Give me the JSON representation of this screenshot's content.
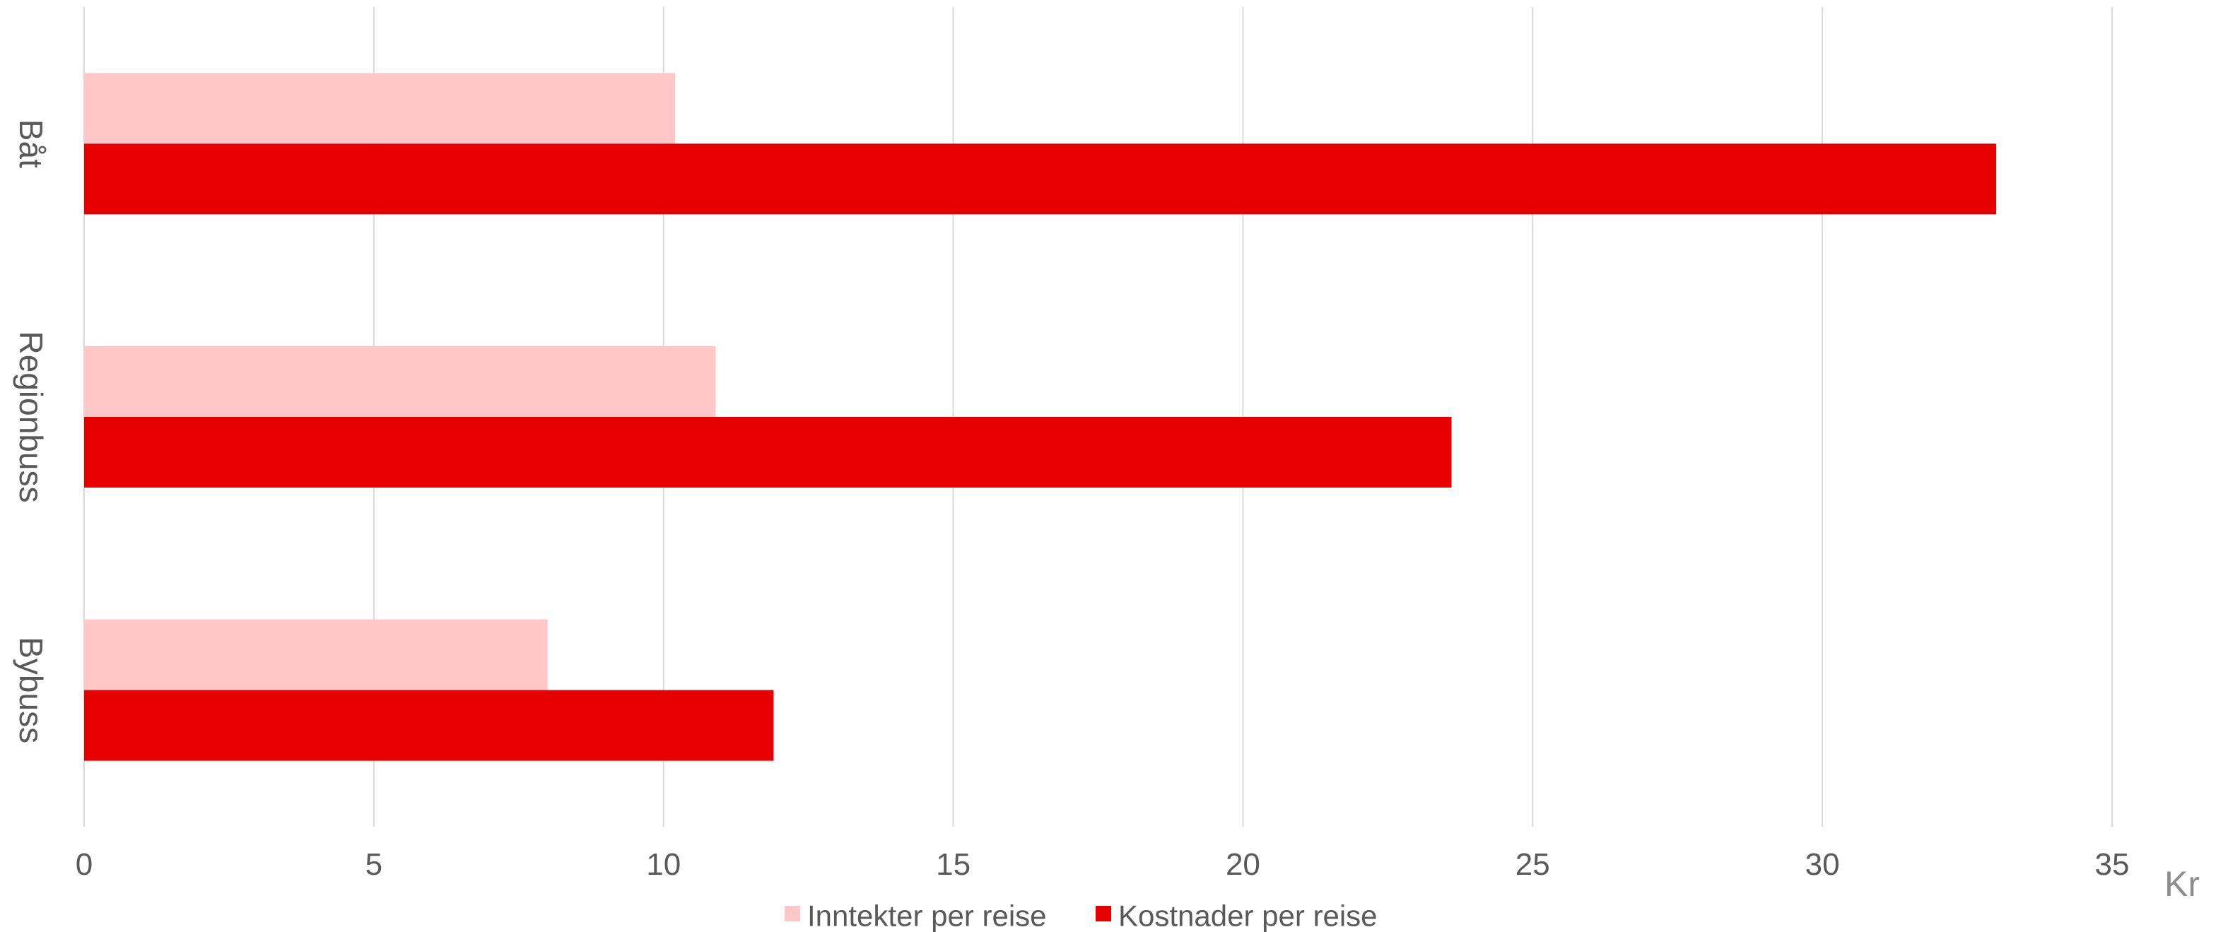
{
  "chart_data": {
    "type": "bar",
    "orientation": "horizontal",
    "categories": [
      "Båt",
      "Regionbuss",
      "Bybuss"
    ],
    "series": [
      {
        "name": "Inntekter per reise",
        "values": [
          10.2,
          10.9,
          8.0
        ],
        "color": "#ffc7c7"
      },
      {
        "name": "Kostnader per reise",
        "values": [
          33.0,
          23.6,
          11.9
        ],
        "color": "#e60000"
      }
    ],
    "x_ticks": [
      "0",
      "5",
      "10",
      "15",
      "20",
      "25",
      "30",
      "35"
    ],
    "xlim": [
      0,
      35
    ],
    "x_unit_label": "Kr",
    "grid": true,
    "legend_position": "bottom",
    "category_label_rotation": "vertical"
  }
}
